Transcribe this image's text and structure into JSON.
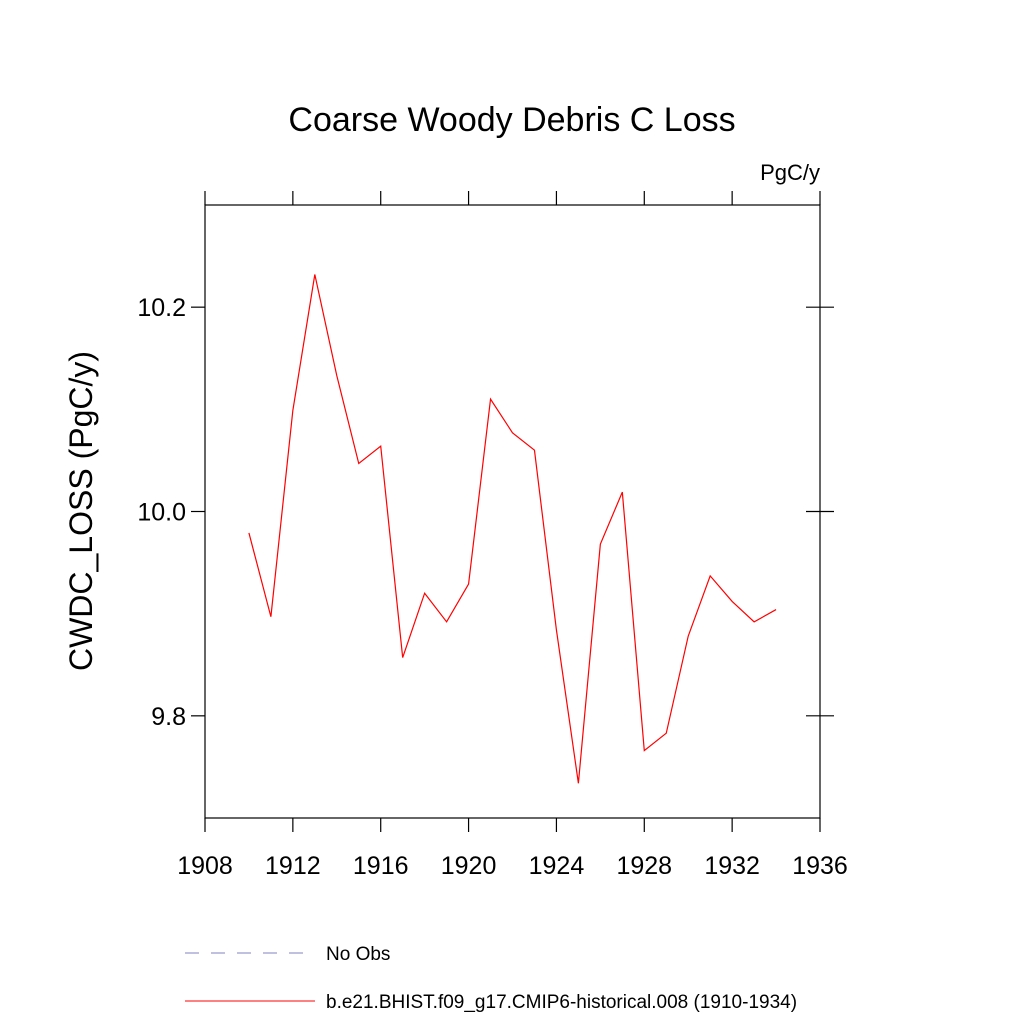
{
  "chart_data": {
    "type": "line",
    "title": "Coarse Woody Debris C Loss",
    "units_label": "PgC/y",
    "y_label": "CWDC_LOSS  (PgC/y)",
    "x": [
      1910,
      1911,
      1912,
      1913,
      1914,
      1915,
      1916,
      1917,
      1918,
      1919,
      1920,
      1921,
      1922,
      1923,
      1924,
      1925,
      1926,
      1927,
      1928,
      1929,
      1930,
      1931,
      1932,
      1933,
      1934
    ],
    "series": [
      {
        "name": "b.e21.BHIST.f09_g17.CMIP6-historical.008 (1910-1934)",
        "color": "#ff0000",
        "values": [
          9.979,
          9.897,
          10.099,
          10.232,
          10.133,
          10.047,
          10.064,
          9.857,
          9.92,
          9.892,
          9.929,
          10.11,
          10.077,
          10.06,
          9.884,
          9.734,
          9.968,
          10.019,
          9.766,
          9.783,
          9.878,
          9.937,
          9.912,
          9.892,
          9.904
        ]
      }
    ],
    "legend": [
      {
        "name": "No Obs",
        "color": "#8080c0",
        "style": "dashed"
      }
    ],
    "xlim": [
      1908,
      1936
    ],
    "xticks": [
      1908,
      1912,
      1916,
      1920,
      1924,
      1928,
      1932,
      1936
    ],
    "ylim": [
      9.7,
      10.3
    ],
    "yticks": [
      9.8,
      {
        "value": 10,
        "label": "10.0"
      },
      10.2
    ]
  }
}
